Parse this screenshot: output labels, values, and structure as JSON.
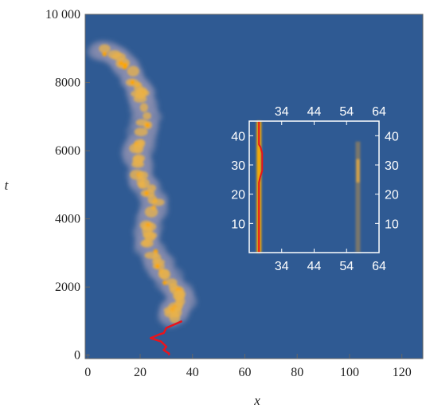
{
  "chart_data": [
    {
      "type": "heatmap",
      "title": "",
      "xlabel": "x",
      "ylabel": "t",
      "xlim": [
        -1,
        128
      ],
      "ylim": [
        -100,
        10000
      ],
      "x_ticks": [
        "0",
        "20",
        "40",
        "60",
        "80",
        "100",
        "120"
      ],
      "y_ticks": [
        "0",
        "2000",
        "4000",
        "6000",
        "8000",
        "10 000"
      ],
      "background_color": "#2f5a93",
      "density_colors": [
        "#8a8fb0",
        "#e8b24a",
        "#ffa500"
      ],
      "density_path": {
        "x": [
          5,
          10,
          15,
          17,
          20,
          21,
          22,
          21,
          18,
          20,
          22,
          25,
          24,
          22,
          25,
          28,
          32,
          36,
          34,
          30
        ],
        "t": [
          9000,
          8800,
          8500,
          8100,
          7800,
          7500,
          7000,
          6300,
          6000,
          5500,
          5000,
          4500,
          4000,
          3500,
          3000,
          2500,
          2000,
          1700,
          1300,
          1000
        ]
      },
      "trajectory": {
        "color": "#e8141c",
        "x": [
          36,
          30,
          29,
          27,
          24,
          28,
          30,
          29,
          31,
          31
        ],
        "t": [
          1000,
          800,
          650,
          600,
          500,
          400,
          250,
          150,
          50,
          0
        ]
      },
      "grid": false
    },
    {
      "type": "heatmap",
      "title": "",
      "xlim": [
        24,
        64
      ],
      "ylim": [
        0,
        45
      ],
      "x_ticks": [
        "34",
        "44",
        "54",
        "64"
      ],
      "y_ticks": [
        "10",
        "20",
        "30",
        "40"
      ],
      "frame_color": "#ffffff",
      "streaks": [
        {
          "x": 27,
          "t_range": [
            0,
            45
          ],
          "color": "#ffb000"
        },
        {
          "x": 57.5,
          "t_range": [
            0,
            38
          ],
          "color": "#d49a3a"
        }
      ],
      "trajectory": {
        "color": "#e8141c",
        "x": [
          27,
          27,
          27.4,
          28,
          28,
          27.5,
          27,
          27
        ],
        "t": [
          0,
          24,
          26,
          28,
          34,
          36,
          37,
          45
        ]
      },
      "grid": false
    }
  ]
}
